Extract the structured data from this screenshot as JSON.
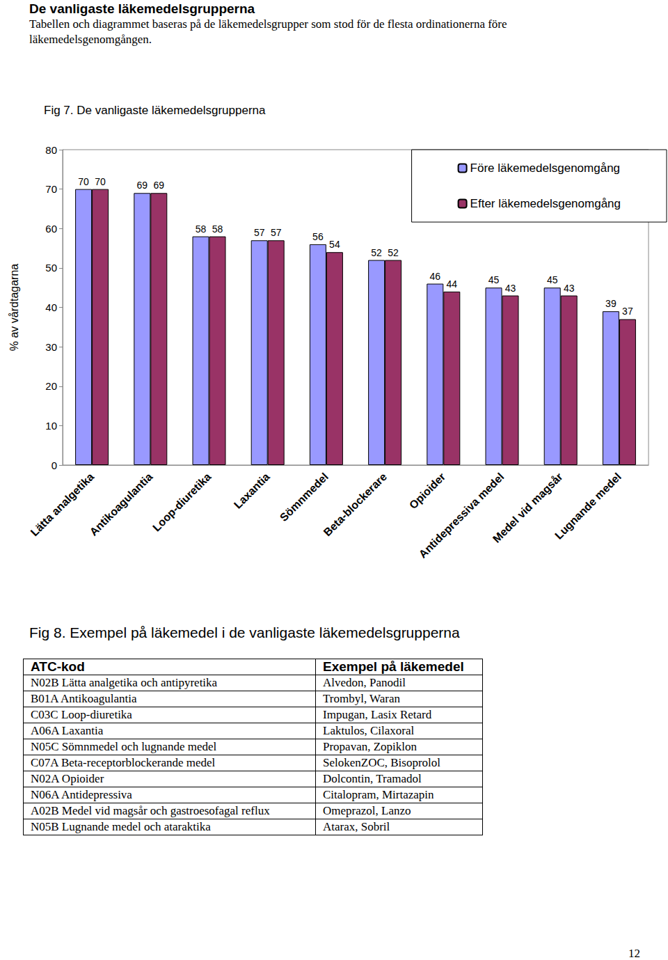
{
  "heading": "De vanligaste läkemedelsgrupperna",
  "intro": "Tabellen och diagrammet baseras på de läkemedelsgrupper som stod för de flesta ordinationerna före läkemedelsgenomgången.",
  "chart_data": {
    "type": "bar",
    "title": "Fig 7. De vanligaste läkemedelsgrupperna",
    "y_label": "% av vårdtagarna",
    "categories": [
      "Lätta analgetika",
      "Antikoagulantia",
      "Loop-diuretika",
      "Laxantia",
      "Sömnmedel",
      "Beta-blockerare",
      "Opioider",
      "Antidepressiva medel",
      "Medel vid magsår",
      "Lugnande medel"
    ],
    "series": [
      {
        "name": "Före läkemedelsgenomgång",
        "color": "#9999ff",
        "values": [
          70,
          69,
          58,
          57,
          56,
          52,
          46,
          45,
          45,
          39
        ]
      },
      {
        "name": "Efter läkemedelsgenomgång",
        "color": "#993366",
        "values": [
          70,
          69,
          58,
          57,
          54,
          52,
          44,
          43,
          43,
          37
        ]
      }
    ],
    "ylim": [
      0,
      80
    ],
    "yticks": [
      0,
      10,
      20,
      30,
      40,
      50,
      60,
      70,
      80
    ],
    "grid": false,
    "legend": "top-right",
    "data_labels": true
  },
  "table": {
    "title": "Fig 8. Exempel på läkemedel i de vanligaste läkemedelsgrupperna",
    "header": [
      "ATC-kod",
      "Exempel på läkemedel"
    ],
    "rows": [
      [
        "N02B Lätta analgetika och antipyretika",
        "Alvedon, Panodil"
      ],
      [
        "B01A Antikoagulantia",
        "Trombyl, Waran"
      ],
      [
        "C03C Loop-diuretika",
        "Impugan, Lasix Retard"
      ],
      [
        "A06A Laxantia",
        "Laktulos, Cilaxoral"
      ],
      [
        "N05C Sömnmedel och lugnande medel",
        "Propavan, Zopiklon"
      ],
      [
        "C07A Beta-receptorblockerande medel",
        "SelokenZOC, Bisoprolol"
      ],
      [
        "N02A Opioider",
        "Dolcontin, Tramadol"
      ],
      [
        "N06A Antidepressiva",
        "Citalopram, Mirtazapin"
      ],
      [
        "A02B Medel vid magsår och gastroesofagal reflux",
        "Omeprazol, Lanzo"
      ],
      [
        "N05B Lugnande medel och ataraktika",
        "Atarax, Sobril"
      ]
    ]
  },
  "page_number": "12"
}
